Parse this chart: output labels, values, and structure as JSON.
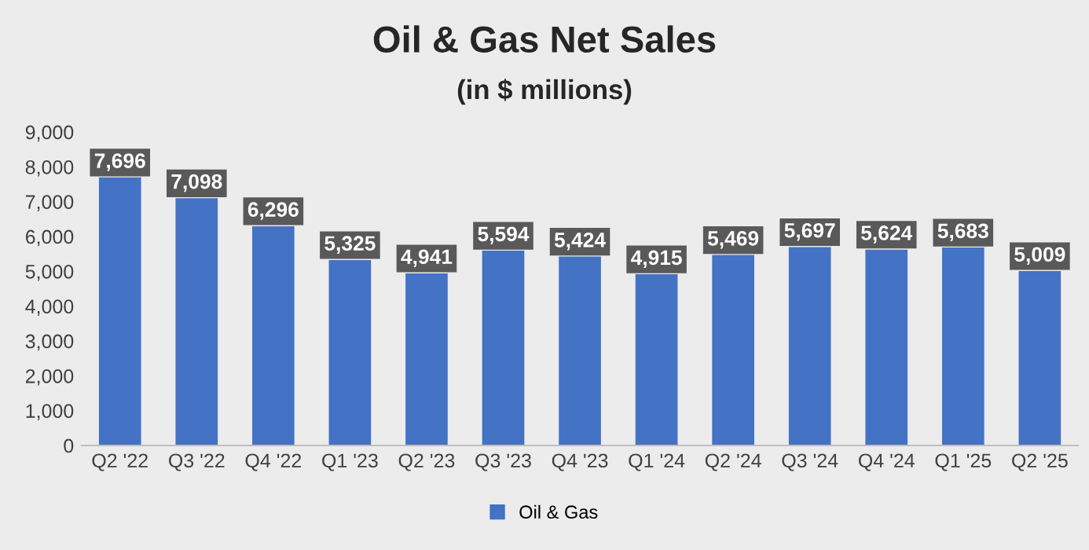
{
  "chart_data": {
    "type": "bar",
    "title": "Oil & Gas Net Sales",
    "subtitle": "(in $ millions)",
    "categories": [
      "Q2 '22",
      "Q3 '22",
      "Q4 '22",
      "Q1 '23",
      "Q2 '23",
      "Q3 '23",
      "Q4 '23",
      "Q1 '24",
      "Q2 '24",
      "Q3 '24",
      "Q4 '24",
      "Q1 '25",
      "Q2 '25"
    ],
    "series": [
      {
        "name": "Oil & Gas",
        "color": "#4472c4",
        "values": [
          7696,
          7098,
          6296,
          5325,
          4941,
          5594,
          5424,
          4915,
          5469,
          5697,
          5624,
          5683,
          5009
        ]
      }
    ],
    "ylim": [
      0,
      9000
    ],
    "yticks": [
      0,
      {
        "value": 1000,
        "label": "1,000"
      },
      {
        "value": 2000,
        "label": "2,000"
      },
      {
        "value": 3000,
        "label": "3,000"
      },
      {
        "value": 4000,
        "label": "4,000"
      },
      {
        "value": 5000,
        "label": "5,000"
      },
      {
        "value": 6000,
        "label": "6,000"
      },
      {
        "value": 7000,
        "label": "7,000"
      },
      {
        "value": 8000,
        "label": "8,000"
      },
      {
        "value": 9000,
        "label": "9,000"
      }
    ],
    "value_labels": [
      "7,696",
      "7,098",
      "6,296",
      "5,325",
      "4,941",
      "5,594",
      "5,424",
      "4,915",
      "5,469",
      "5,697",
      "5,624",
      "5,683",
      "5,009"
    ],
    "grid": false,
    "legend": "bottom"
  }
}
